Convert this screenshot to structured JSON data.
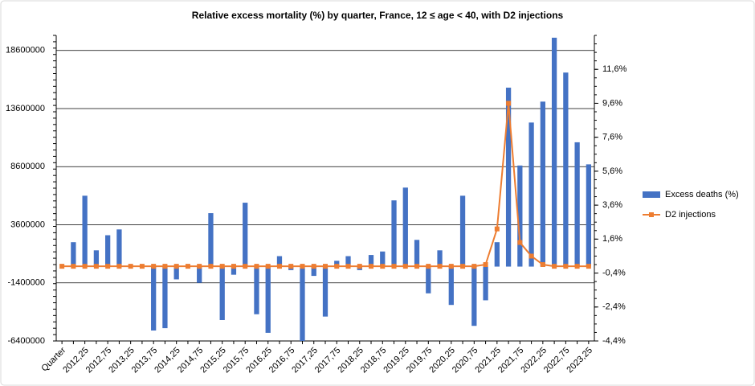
{
  "chart_data": {
    "type": "bar-line",
    "title": "Relative excess mortality (%) by quarter, France, 12 ≤ age < 40, with D2 injections",
    "categories": [
      "Quarter",
      null,
      "2012,25",
      null,
      "2012,75",
      null,
      "2013,25",
      null,
      "2013,75",
      null,
      "2014,25",
      null,
      "2014,75",
      null,
      "2015,25",
      null,
      "2015,75",
      null,
      "2016,25",
      null,
      "2016,75",
      null,
      "2017,25",
      null,
      "2017,75",
      null,
      "2018,25",
      null,
      "2018,75",
      null,
      "2019,25",
      null,
      "2019,75",
      null,
      "2020,25",
      null,
      "2020,75",
      null,
      "2021,25",
      null,
      "2021,75",
      null,
      "2022,25",
      null,
      "2022,75",
      null,
      "2023,25"
    ],
    "series": [
      {
        "name": "Excess deaths (%)",
        "color": "#4472c4",
        "kind": "bar",
        "values": [
          0,
          2100000,
          6100000,
          1400000,
          2700000,
          3200000,
          0,
          0,
          -5500000,
          -5300000,
          -1100000,
          0,
          -1400000,
          4600000,
          -4600000,
          -700000,
          5500000,
          -4100000,
          -5700000,
          900000,
          -300000,
          -6400000,
          -800000,
          -4300000,
          500000,
          900000,
          -300000,
          1000000,
          1300000,
          5700000,
          6800000,
          2300000,
          -2300000,
          1400000,
          -3300000,
          6100000,
          -5100000,
          -2900000,
          2100000,
          15400000,
          8700000,
          12400000,
          14200000,
          19700000,
          16700000,
          10700000,
          8800000
        ]
      },
      {
        "name": "D2 injections",
        "color": "#ed7d31",
        "kind": "line",
        "axis": "y2",
        "values": [
          0,
          0,
          0,
          0,
          0,
          0,
          0,
          0,
          0,
          0,
          0,
          0,
          0,
          0,
          0,
          0,
          0,
          0,
          0,
          0,
          0,
          0,
          0,
          0,
          0,
          0,
          0,
          0,
          0,
          0,
          0,
          0,
          0,
          0,
          0,
          0,
          0,
          0.1,
          2.2,
          9.6,
          1.4,
          0.6,
          0.1,
          0,
          0,
          0,
          0
        ]
      }
    ],
    "ylim": [
      -6400000,
      19900000
    ],
    "yticks": [
      -6400000,
      -1400000,
      3600000,
      8600000,
      13600000,
      18600000
    ],
    "y2lim": [
      -4.4,
      13.6
    ],
    "y2ticks": [
      {
        "value": -4.4,
        "label": "-4,4%"
      },
      {
        "value": -2.4,
        "label": "-2,4%"
      },
      {
        "value": -0.4,
        "label": "-0,4%"
      },
      {
        "value": 1.6,
        "label": "1,6%"
      },
      {
        "value": 3.6,
        "label": "3,6%"
      },
      {
        "value": 5.6,
        "label": "5,6%"
      },
      {
        "value": 7.6,
        "label": "7,6%"
      },
      {
        "value": 9.6,
        "label": "9,6%"
      },
      {
        "value": 11.6,
        "label": "11,6%"
      }
    ],
    "grid": true,
    "legend": "right"
  }
}
